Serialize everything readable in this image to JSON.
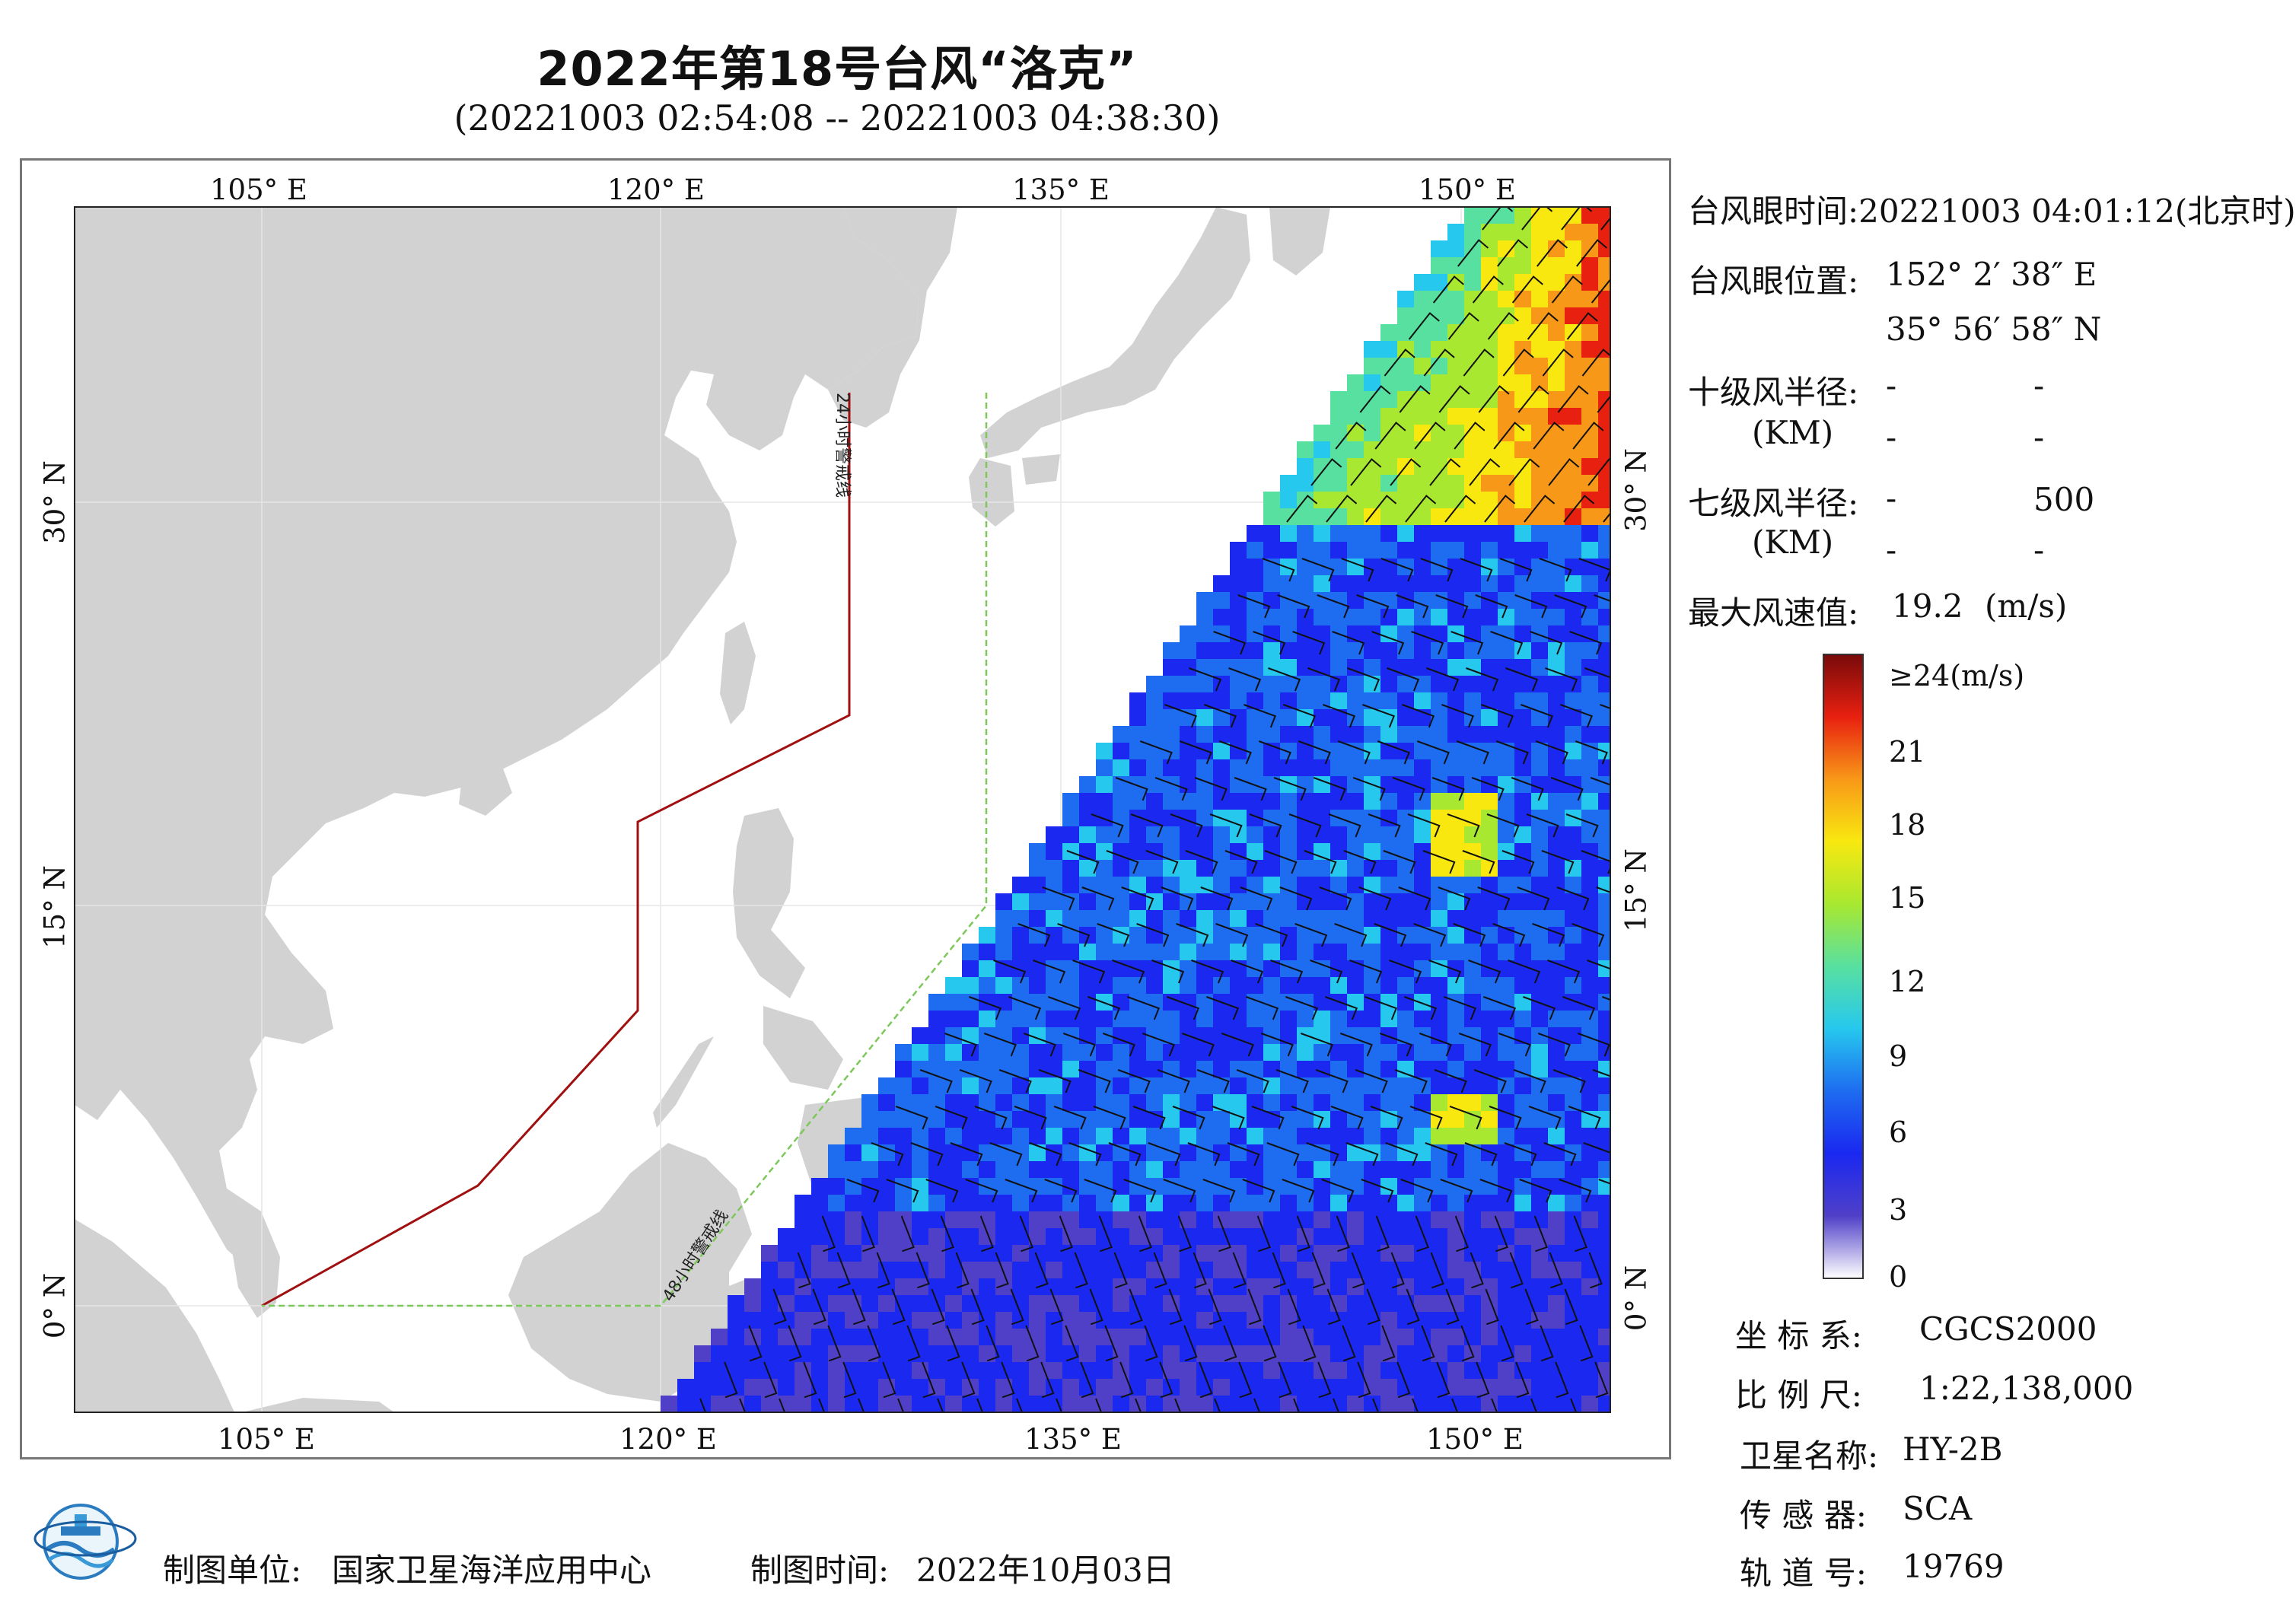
{
  "title": "2022年第18号台风“洛克”",
  "subtitle": "(20221003 02:54:08 -- 20221003 04:38:30)",
  "axes": {
    "top_lon": [
      "105° E",
      "120° E",
      "135° E",
      "150° E"
    ],
    "bottom_lon": [
      "105° E",
      "120° E",
      "135° E",
      "150° E"
    ],
    "left_lat": [
      "30° N",
      "15° N",
      "0° N"
    ],
    "right_lat": [
      "30° N",
      "15° N",
      "0° N"
    ]
  },
  "map_labels": {
    "warn24": "24小时警戒线",
    "warn48": "48小时警戒线"
  },
  "info": {
    "eye_time_label": "台风眼时间:",
    "eye_time_value": "20221003 04:01:12(北京时)",
    "eye_pos_label": "台风眼位置:",
    "eye_lon": "152° 2′ 38″ E",
    "eye_lat": "35° 56′ 58″ N",
    "r10_label": "十级风半径:",
    "r10_unit": "(KM)",
    "r10_values": [
      "-",
      "-",
      "-",
      "-"
    ],
    "r7_label": "七级风半径:",
    "r7_unit": "(KM)",
    "r7_values": [
      "-",
      "500",
      "-",
      "-"
    ],
    "max_wind_label": "最大风速值:",
    "max_wind_value": "19.2",
    "max_wind_unit": "(m/s)"
  },
  "colorbar": {
    "ticks": [
      "≥24(m/s)",
      "21",
      "18",
      "15",
      "12",
      "9",
      "6",
      "3",
      "0"
    ],
    "tick_values": [
      24,
      21,
      18,
      15,
      12,
      9,
      6,
      3,
      0
    ],
    "min": 0,
    "max": 24,
    "colors": [
      "#ffffff",
      "#5040c8",
      "#1a28f0",
      "#1e6cf0",
      "#26c8ee",
      "#58e0a0",
      "#a8e830",
      "#f8e810",
      "#f89818",
      "#e82010",
      "#780a0a"
    ]
  },
  "meta": {
    "crs_label": "坐 标 系:",
    "crs_value": "CGCS2000",
    "scale_label": "比 例 尺:",
    "scale_value": "1:22,138,000",
    "sat_label": "卫星名称:",
    "sat_value": "HY-2B",
    "sensor_label": "传 感 器:",
    "sensor_value": "SCA",
    "orbit_label": "轨 道 号:",
    "orbit_value": "19769"
  },
  "footer": {
    "org_label": "制图单位:",
    "org_value": "国家卫星海洋应用中心",
    "time_label": "制图时间:",
    "time_value": "2022年10月03日"
  },
  "colors": {
    "land": "#d2d2d2",
    "warn24": "#a01010",
    "warn48": "#7cc85a"
  }
}
